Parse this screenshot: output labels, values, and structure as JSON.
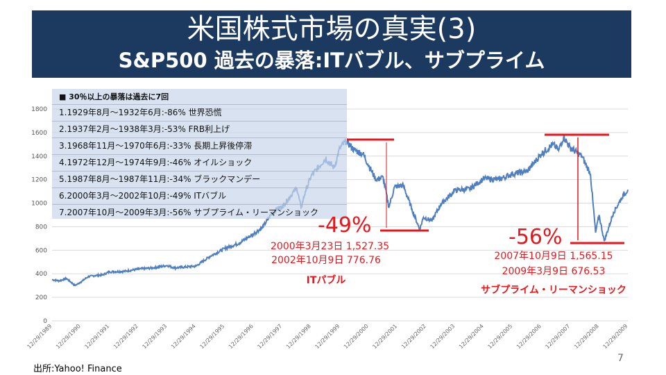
{
  "header": {
    "title": "米国株式市場の真実(3)",
    "subtitle": "S&P500 過去の暴落:ITバブル、サブプライム"
  },
  "note": {
    "heading": "■ 30％以上の暴落は過去に7回",
    "items": [
      "1.1929年8月～1932年6月:-86% 世界恐慌",
      "2.1937年2月～1938年3月:-53%  FRB利上げ",
      "3.1968年11月～1970年6月:-33%  長期上昇後停滞",
      "4.1972年12月～1974年9月:-46%  オイルショック",
      "5.1987年8月～1987年11月:-34%  ブラックマンデー",
      "6.2000年3月～2002年10月:-49% ITバブル",
      "7.2007年10月～2009年3月:-56% サブプライム・リーマンショック"
    ]
  },
  "annotations": {
    "it": {
      "pct": "-49%",
      "peak": "2000年3月23日 1,527.35",
      "trough": "2002年10月9日 776.76",
      "label": "ITパブル"
    },
    "subprime": {
      "pct": "-56%",
      "peak": "2007年10月9日 1,565.15",
      "trough": "2009年3月9日 676.53",
      "label": "サブプライム・リーマンショック"
    }
  },
  "colors": {
    "line": "#4f7fbf",
    "accent": "#e8161b",
    "banner": "#1c3960"
  },
  "footer": {
    "source": "出所:Yahoo! Finance",
    "page": "7"
  },
  "chart_data": {
    "type": "line",
    "title": "S&P500",
    "ylim": [
      0,
      1800
    ],
    "yticks": [
      0,
      200,
      400,
      600,
      800,
      1000,
      1200,
      1400,
      1600,
      1800
    ],
    "xticks": [
      "12/29/1989",
      "12/29/1990",
      "12/29/1991",
      "12/29/1992",
      "12/29/1993",
      "12/29/1994",
      "12/29/1995",
      "12/29/1996",
      "12/29/1997",
      "12/29/1998",
      "12/29/1999",
      "12/29/2000",
      "12/29/2001",
      "12/29/2002",
      "12/29/2003",
      "12/29/2004",
      "12/29/2005",
      "12/29/2006",
      "12/29/2007",
      "12/29/2008",
      "12/29/2009"
    ],
    "grid": true,
    "series": [
      {
        "name": "S&P500",
        "x": [
          1990.0,
          1990.25,
          1990.5,
          1990.8,
          1991.0,
          1991.25,
          1991.5,
          1991.75,
          1992.0,
          1992.5,
          1993.0,
          1993.5,
          1994.0,
          1994.25,
          1994.5,
          1995.0,
          1995.5,
          1996.0,
          1996.5,
          1997.0,
          1997.3,
          1997.6,
          1997.8,
          1998.0,
          1998.5,
          1998.65,
          1998.8,
          1999.0,
          1999.5,
          1999.8,
          2000.0,
          2000.22,
          2000.5,
          2000.8,
          2001.0,
          2001.25,
          2001.5,
          2001.7,
          2001.9,
          2002.2,
          2002.5,
          2002.77,
          2002.9,
          2003.2,
          2003.5,
          2004.0,
          2004.5,
          2005.0,
          2005.5,
          2006.0,
          2006.5,
          2007.0,
          2007.4,
          2007.6,
          2007.77,
          2008.0,
          2008.4,
          2008.7,
          2008.88,
          2009.0,
          2009.18,
          2009.5,
          2009.8,
          2010.0
        ],
        "values": [
          350,
          340,
          360,
          300,
          330,
          375,
          385,
          390,
          417,
          420,
          440,
          450,
          470,
          450,
          455,
          465,
          550,
          615,
          660,
          740,
          790,
          900,
          950,
          970,
          1130,
          960,
          1100,
          1230,
          1380,
          1300,
          1470,
          1527,
          1450,
          1420,
          1320,
          1200,
          1220,
          965,
          1140,
          1150,
          950,
          777,
          880,
          850,
          990,
          1110,
          1120,
          1210,
          1200,
          1250,
          1270,
          1420,
          1500,
          1450,
          1565,
          1470,
          1400,
          1250,
          750,
          900,
          677,
          920,
          1050,
          1115
        ]
      }
    ]
  }
}
